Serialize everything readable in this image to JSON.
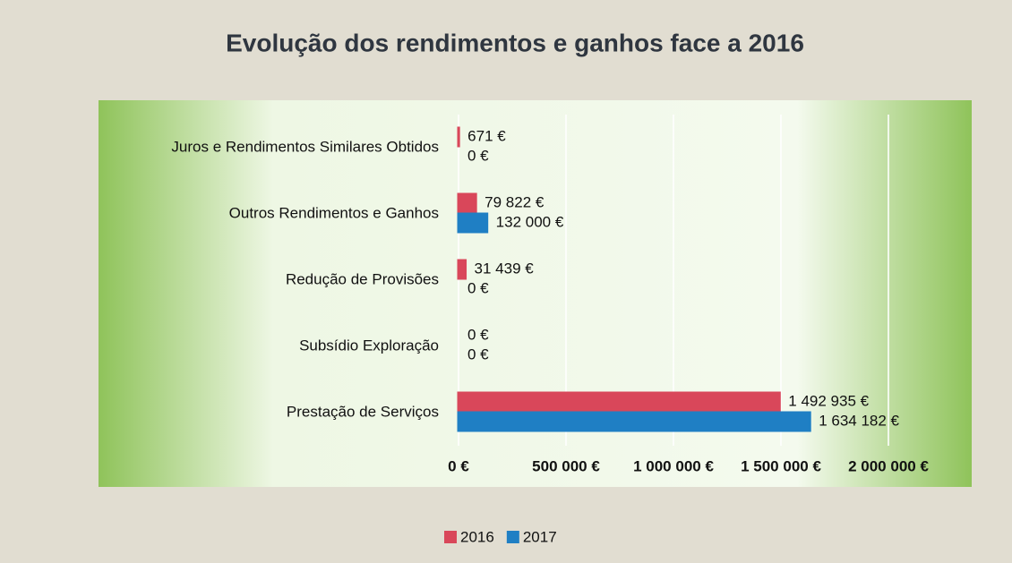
{
  "chart_data": {
    "type": "hbar",
    "title": "Evolução dos rendimentos e ganhos face a 2016",
    "categories": [
      "Juros e Rendimentos Similares Obtidos",
      "Outros Rendimentos e Ganhos",
      "Redução de Provisões",
      "Subsídio Exploração",
      "Prestação de Serviços"
    ],
    "series": [
      {
        "name": "2016",
        "color": "#d9475a",
        "values": [
          671,
          79822,
          31439,
          0,
          1492935
        ],
        "value_labels": [
          "671 €",
          "79 822 €",
          "31 439 €",
          "0 €",
          "1 492 935 €"
        ]
      },
      {
        "name": "2017",
        "color": "#1f7fc4",
        "values": [
          0,
          132000,
          0,
          0,
          1634182
        ],
        "value_labels": [
          "0 €",
          "132 000 €",
          "0 €",
          "0 €",
          "1 634 182 €"
        ]
      }
    ],
    "xlim": [
      0,
      2000000
    ],
    "xticks": [
      {
        "value": 0,
        "label": "0 €"
      },
      {
        "value": 500000,
        "label": "500 000 €"
      },
      {
        "value": 1000000,
        "label": "1 000 000 €"
      },
      {
        "value": 1500000,
        "label": "1 500 000 €"
      },
      {
        "value": 2000000,
        "label": "2 000 000 €"
      }
    ],
    "grid": true,
    "legend": "bottom"
  }
}
